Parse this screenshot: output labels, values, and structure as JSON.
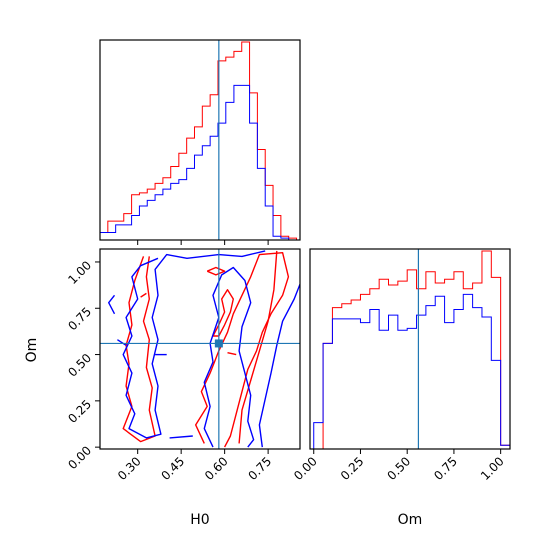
{
  "chart_data": {
    "type": "corner",
    "parameters": [
      "H0",
      "Om"
    ],
    "truths": {
      "H0": 0.58,
      "Om": 0.56
    },
    "colors": {
      "red_series": "#ff0000",
      "blue_series": "#0000ff",
      "truth_line": "#1f77b4"
    },
    "panels": [
      {
        "name": "H0-marginal",
        "type": "histogram",
        "xlim": [
          0.17,
          0.86
        ],
        "x_ticks": [
          0.3,
          0.45,
          0.6,
          0.75
        ],
        "show_tick_labels": false,
        "bin_edges": [
          0.17,
          0.197,
          0.224,
          0.252,
          0.279,
          0.306,
          0.333,
          0.36,
          0.387,
          0.414,
          0.442,
          0.469,
          0.496,
          0.523,
          0.55,
          0.577,
          0.604,
          0.632,
          0.659,
          0.686,
          0.713,
          0.74,
          0.767,
          0.794,
          0.821,
          0.848,
          0.86
        ],
        "series": [
          {
            "name": "red",
            "counts": [
              0.04,
              0.1,
              0.1,
              0.14,
              0.24,
              0.25,
              0.27,
              0.3,
              0.33,
              0.39,
              0.46,
              0.54,
              0.6,
              0.71,
              0.77,
              0.95,
              0.97,
              1.0,
              1.05,
              0.78,
              0.48,
              0.29,
              0.13,
              0.02,
              0.01,
              0.0
            ]
          },
          {
            "name": "blue",
            "counts": [
              0.04,
              0.04,
              0.08,
              0.08,
              0.13,
              0.18,
              0.21,
              0.24,
              0.27,
              0.3,
              0.32,
              0.38,
              0.45,
              0.5,
              0.55,
              0.62,
              0.73,
              0.82,
              0.82,
              0.62,
              0.38,
              0.18,
              0.02,
              0.01,
              0.0,
              0.0
            ]
          }
        ]
      },
      {
        "name": "Om-marginal",
        "type": "histogram",
        "xlim": [
          -0.02,
          1.05
        ],
        "x_ticks": [
          0.0,
          0.25,
          0.5,
          0.75,
          1.0
        ],
        "x_tick_labels": [
          "0.00",
          "0.25",
          "0.50",
          "0.75",
          "1.00"
        ],
        "xlabel": "Om",
        "bin_edges": [
          0.0,
          0.05,
          0.1,
          0.15,
          0.2,
          0.25,
          0.3,
          0.35,
          0.4,
          0.45,
          0.5,
          0.55,
          0.6,
          0.65,
          0.7,
          0.75,
          0.8,
          0.85,
          0.9,
          0.95,
          1.0,
          1.05
        ],
        "series": [
          {
            "name": "red",
            "counts": [
              0.0,
              0.56,
              0.75,
              0.77,
              0.79,
              0.82,
              0.85,
              0.9,
              0.87,
              0.89,
              0.95,
              0.85,
              0.94,
              0.88,
              0.9,
              0.94,
              0.85,
              0.88,
              1.05,
              0.91,
              0.02
            ]
          },
          {
            "name": "blue",
            "counts": [
              0.14,
              0.56,
              0.69,
              0.69,
              0.69,
              0.67,
              0.74,
              0.63,
              0.71,
              0.63,
              0.64,
              0.71,
              0.76,
              0.81,
              0.67,
              0.74,
              0.82,
              0.75,
              0.7,
              0.47,
              0.02
            ]
          }
        ]
      },
      {
        "name": "H0-Om-contour",
        "type": "contour",
        "xlim": [
          0.17,
          0.86
        ],
        "ylim": [
          -0.01,
          1.07
        ],
        "x_ticks": [
          0.3,
          0.45,
          0.6,
          0.75
        ],
        "x_tick_labels": [
          "0.30",
          "0.45",
          "0.60",
          "0.75"
        ],
        "y_ticks": [
          0.0,
          0.25,
          0.5,
          0.75,
          1.0
        ],
        "y_tick_labels": [
          "0.00",
          "0.25",
          "0.50",
          "0.75",
          "1.00"
        ],
        "xlabel": "H0",
        "ylabel": "Om",
        "series": [
          {
            "name": "red",
            "contours": [
              [
                [
                  0.32,
                  1.03
                ],
                [
                  0.29,
                  0.9
                ],
                [
                  0.27,
                  0.78
                ],
                [
                  0.28,
                  0.66
                ],
                [
                  0.26,
                  0.55
                ],
                [
                  0.27,
                  0.45
                ],
                [
                  0.26,
                  0.33
                ],
                [
                  0.28,
                  0.22
                ],
                [
                  0.25,
                  0.1
                ],
                [
                  0.31,
                  0.03
                ],
                [
                  0.36,
                  0.06
                ],
                [
                  0.34,
                  0.2
                ],
                [
                  0.35,
                  0.32
                ],
                [
                  0.33,
                  0.43
                ],
                [
                  0.34,
                  0.58
                ],
                [
                  0.32,
                  0.68
                ],
                [
                  0.34,
                  0.8
                ],
                [
                  0.33,
                  0.92
                ],
                [
                  0.34,
                  1.03
                ]
              ],
              [
                [
                  0.53,
                  0.02
                ],
                [
                  0.5,
                  0.12
                ],
                [
                  0.54,
                  0.22
                ],
                [
                  0.52,
                  0.3
                ],
                [
                  0.55,
                  0.4
                ],
                [
                  0.58,
                  0.52
                ],
                [
                  0.61,
                  0.62
                ],
                [
                  0.63,
                  0.72
                ],
                [
                  0.66,
                  0.82
                ],
                [
                  0.69,
                  0.92
                ],
                [
                  0.72,
                  1.04
                ],
                [
                  0.8,
                  1.05
                ],
                [
                  0.82,
                  0.92
                ],
                [
                  0.8,
                  0.82
                ],
                [
                  0.76,
                  0.72
                ],
                [
                  0.73,
                  0.62
                ],
                [
                  0.71,
                  0.52
                ],
                [
                  0.68,
                  0.42
                ],
                [
                  0.66,
                  0.3
                ],
                [
                  0.64,
                  0.18
                ],
                [
                  0.62,
                  0.06
                ],
                [
                  0.6,
                  0.0
                ]
              ],
              [
                [
                  0.78,
                  1.06
                ],
                [
                  0.77,
                  0.85
                ],
                [
                  0.75,
                  0.68
                ],
                [
                  0.72,
                  0.52
                ],
                [
                  0.69,
                  0.36
                ],
                [
                  0.66,
                  0.2
                ],
                [
                  0.65,
                  0.02
                ]
              ],
              [
                [
                  0.56,
                  0.6
                ],
                [
                  0.58,
                  0.66
                ],
                [
                  0.6,
                  0.73
                ],
                [
                  0.59,
                  0.8
                ],
                [
                  0.61,
                  0.85
                ],
                [
                  0.63,
                  0.8
                ],
                [
                  0.62,
                  0.73
                ],
                [
                  0.6,
                  0.66
                ],
                [
                  0.58,
                  0.6
                ],
                [
                  0.56,
                  0.6
                ]
              ],
              [
                [
                  0.54,
                  0.95
                ],
                [
                  0.57,
                  0.93
                ],
                [
                  0.6,
                  0.95
                ],
                [
                  0.57,
                  0.97
                ],
                [
                  0.54,
                  0.95
                ]
              ],
              [
                [
                  0.61,
                  0.51
                ],
                [
                  0.64,
                  0.5
                ]
              ],
              [
                [
                  0.31,
                  0.81
                ],
                [
                  0.33,
                  0.83
                ]
              ]
            ]
          },
          {
            "name": "blue",
            "contours": [
              [
                [
                  0.37,
                  1.02
                ],
                [
                  0.31,
                  0.98
                ],
                [
                  0.28,
                  0.92
                ],
                [
                  0.3,
                  0.8
                ],
                [
                  0.26,
                  0.7
                ],
                [
                  0.28,
                  0.6
                ],
                [
                  0.25,
                  0.5
                ],
                [
                  0.28,
                  0.4
                ],
                [
                  0.26,
                  0.28
                ],
                [
                  0.29,
                  0.18
                ],
                [
                  0.27,
                  0.1
                ],
                [
                  0.33,
                  0.05
                ],
                [
                  0.38,
                  0.07
                ],
                [
                  0.36,
                  0.2
                ],
                [
                  0.37,
                  0.33
                ],
                [
                  0.35,
                  0.45
                ],
                [
                  0.37,
                  0.58
                ],
                [
                  0.35,
                  0.7
                ],
                [
                  0.37,
                  0.82
                ],
                [
                  0.36,
                  0.96
                ],
                [
                  0.4,
                  1.04
                ],
                [
                  0.47,
                  1.02
                ],
                [
                  0.58,
                  1.04
                ],
                [
                  0.66,
                  1.03
                ],
                [
                  0.74,
                  1.06
                ]
              ],
              [
                [
                  0.56,
                  0.0
                ],
                [
                  0.53,
                  0.1
                ],
                [
                  0.55,
                  0.22
                ],
                [
                  0.53,
                  0.35
                ],
                [
                  0.56,
                  0.46
                ],
                [
                  0.55,
                  0.56
                ],
                [
                  0.58,
                  0.7
                ],
                [
                  0.56,
                  0.82
                ],
                [
                  0.59,
                  0.93
                ],
                [
                  0.63,
                  0.97
                ],
                [
                  0.67,
                  0.9
                ],
                [
                  0.69,
                  0.78
                ],
                [
                  0.66,
                  0.65
                ],
                [
                  0.65,
                  0.52
                ],
                [
                  0.67,
                  0.4
                ],
                [
                  0.69,
                  0.28
                ],
                [
                  0.68,
                  0.14
                ],
                [
                  0.7,
                  0.04
                ],
                [
                  0.68,
                  0.0
                ]
              ],
              [
                [
                  0.73,
                  0.0
                ],
                [
                  0.72,
                  0.12
                ],
                [
                  0.74,
                  0.26
                ],
                [
                  0.76,
                  0.4
                ],
                [
                  0.78,
                  0.55
                ],
                [
                  0.8,
                  0.68
                ],
                [
                  0.84,
                  0.8
                ],
                [
                  0.86,
                  0.88
                ]
              ],
              [
                [
                  0.22,
                  0.82
                ],
                [
                  0.2,
                  0.78
                ],
                [
                  0.22,
                  0.72
                ]
              ],
              [
                [
                  0.41,
                  0.05
                ],
                [
                  0.49,
                  0.06
                ]
              ],
              [
                [
                  0.36,
                  0.5
                ],
                [
                  0.4,
                  0.5
                ]
              ],
              [
                [
                  0.23,
                  0.58
                ],
                [
                  0.26,
                  0.55
                ]
              ]
            ]
          }
        ]
      }
    ]
  }
}
